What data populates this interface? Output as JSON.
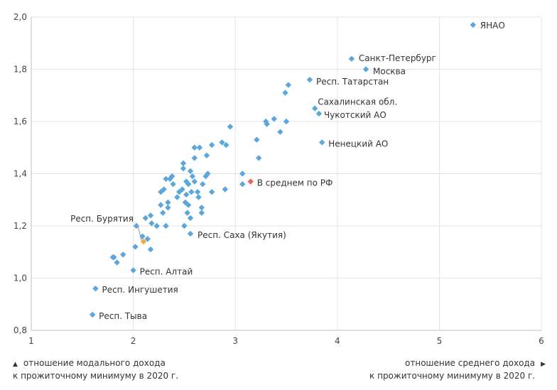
{
  "chart_data": {
    "type": "scatter",
    "title": "",
    "xlabel_lines": [
      "отношение среднего дохода",
      "к прожиточному минимуму в 2020 г."
    ],
    "ylabel_lines": [
      "отношение модального дохода",
      "к прожиточному минимуму в 2020 г."
    ],
    "xlim": [
      1,
      6
    ],
    "ylim": [
      0.8,
      2.0
    ],
    "x_ticks": [
      1,
      2,
      3,
      4,
      5,
      6
    ],
    "x_tick_labels": [
      "1",
      "2",
      "3",
      "4",
      "5",
      "6"
    ],
    "y_ticks": [
      0.8,
      1.0,
      1.2,
      1.4,
      1.6,
      1.8,
      2.0
    ],
    "y_tick_labels": [
      "0,8",
      "1,0",
      "1,2",
      "1,4",
      "1,6",
      "1,8",
      "2,0"
    ],
    "colors": {
      "regular": "#5ba7dc",
      "average": "#e8645c",
      "highlight": "#f2a93b",
      "grid": "#e3e3e3",
      "axis": "#bfbfbf"
    },
    "points": [
      {
        "x": 5.33,
        "y": 1.97,
        "label": "ЯНАО",
        "kind": "regular"
      },
      {
        "x": 4.14,
        "y": 1.84,
        "label": "Санкт-Петербург",
        "kind": "regular"
      },
      {
        "x": 4.28,
        "y": 1.8,
        "label": "Москва",
        "kind": "regular"
      },
      {
        "x": 3.73,
        "y": 1.76,
        "label": "Респ. Татарстан",
        "kind": "regular"
      },
      {
        "x": 3.78,
        "y": 1.65,
        "label": "Сахалинская обл.",
        "kind": "regular"
      },
      {
        "x": 3.82,
        "y": 1.63,
        "label": "Чукотский АО",
        "kind": "regular"
      },
      {
        "x": 3.85,
        "y": 1.52,
        "label": "Ненецкий АО",
        "kind": "regular"
      },
      {
        "x": 3.15,
        "y": 1.37,
        "label": "В среднем по РФ",
        "kind": "average"
      },
      {
        "x": 2.1,
        "y": 1.14,
        "label": "Респ. Бурятия",
        "kind": "highlight"
      },
      {
        "x": 2.56,
        "y": 1.17,
        "label": "Респ. Саха (Якутия)",
        "kind": "regular"
      },
      {
        "x": 2.0,
        "y": 1.03,
        "label": "Респ. Алтай",
        "kind": "regular"
      },
      {
        "x": 1.63,
        "y": 0.96,
        "label": "Респ. Ингушетия",
        "kind": "regular"
      },
      {
        "x": 1.6,
        "y": 0.86,
        "label": "Респ. Тыва",
        "kind": "regular"
      },
      {
        "x": 3.52,
        "y": 1.74,
        "label": "",
        "kind": "regular"
      },
      {
        "x": 3.49,
        "y": 1.71,
        "label": "",
        "kind": "regular"
      },
      {
        "x": 3.3,
        "y": 1.6,
        "label": "",
        "kind": "regular"
      },
      {
        "x": 3.31,
        "y": 1.59,
        "label": "",
        "kind": "regular"
      },
      {
        "x": 3.38,
        "y": 1.61,
        "label": "",
        "kind": "regular"
      },
      {
        "x": 3.5,
        "y": 1.6,
        "label": "",
        "kind": "regular"
      },
      {
        "x": 3.44,
        "y": 1.56,
        "label": "",
        "kind": "regular"
      },
      {
        "x": 2.95,
        "y": 1.58,
        "label": "",
        "kind": "regular"
      },
      {
        "x": 3.21,
        "y": 1.53,
        "label": "",
        "kind": "regular"
      },
      {
        "x": 3.23,
        "y": 1.46,
        "label": "",
        "kind": "regular"
      },
      {
        "x": 3.07,
        "y": 1.4,
        "label": "",
        "kind": "regular"
      },
      {
        "x": 3.07,
        "y": 1.36,
        "label": "",
        "kind": "regular"
      },
      {
        "x": 2.87,
        "y": 1.52,
        "label": "",
        "kind": "regular"
      },
      {
        "x": 2.91,
        "y": 1.51,
        "label": "",
        "kind": "regular"
      },
      {
        "x": 2.77,
        "y": 1.51,
        "label": "",
        "kind": "regular"
      },
      {
        "x": 2.65,
        "y": 1.5,
        "label": "",
        "kind": "regular"
      },
      {
        "x": 2.6,
        "y": 1.5,
        "label": "",
        "kind": "regular"
      },
      {
        "x": 2.72,
        "y": 1.47,
        "label": "",
        "kind": "regular"
      },
      {
        "x": 2.6,
        "y": 1.46,
        "label": "",
        "kind": "regular"
      },
      {
        "x": 2.49,
        "y": 1.44,
        "label": "",
        "kind": "regular"
      },
      {
        "x": 2.49,
        "y": 1.42,
        "label": "",
        "kind": "regular"
      },
      {
        "x": 2.56,
        "y": 1.41,
        "label": "",
        "kind": "regular"
      },
      {
        "x": 2.73,
        "y": 1.4,
        "label": "",
        "kind": "regular"
      },
      {
        "x": 2.71,
        "y": 1.39,
        "label": "",
        "kind": "regular"
      },
      {
        "x": 2.58,
        "y": 1.39,
        "label": "",
        "kind": "regular"
      },
      {
        "x": 2.38,
        "y": 1.39,
        "label": "",
        "kind": "regular"
      },
      {
        "x": 2.32,
        "y": 1.38,
        "label": "",
        "kind": "regular"
      },
      {
        "x": 2.36,
        "y": 1.38,
        "label": "",
        "kind": "regular"
      },
      {
        "x": 2.52,
        "y": 1.37,
        "label": "",
        "kind": "regular"
      },
      {
        "x": 2.6,
        "y": 1.37,
        "label": "",
        "kind": "regular"
      },
      {
        "x": 2.54,
        "y": 1.36,
        "label": "",
        "kind": "regular"
      },
      {
        "x": 2.68,
        "y": 1.36,
        "label": "",
        "kind": "regular"
      },
      {
        "x": 2.39,
        "y": 1.36,
        "label": "",
        "kind": "regular"
      },
      {
        "x": 2.48,
        "y": 1.34,
        "label": "",
        "kind": "regular"
      },
      {
        "x": 2.3,
        "y": 1.34,
        "label": "",
        "kind": "regular"
      },
      {
        "x": 2.45,
        "y": 1.33,
        "label": "",
        "kind": "regular"
      },
      {
        "x": 2.27,
        "y": 1.33,
        "label": "",
        "kind": "regular"
      },
      {
        "x": 2.57,
        "y": 1.33,
        "label": "",
        "kind": "regular"
      },
      {
        "x": 2.63,
        "y": 1.33,
        "label": "",
        "kind": "regular"
      },
      {
        "x": 2.77,
        "y": 1.33,
        "label": "",
        "kind": "regular"
      },
      {
        "x": 2.9,
        "y": 1.34,
        "label": "",
        "kind": "regular"
      },
      {
        "x": 2.52,
        "y": 1.32,
        "label": "",
        "kind": "regular"
      },
      {
        "x": 2.43,
        "y": 1.31,
        "label": "",
        "kind": "regular"
      },
      {
        "x": 2.64,
        "y": 1.31,
        "label": "",
        "kind": "regular"
      },
      {
        "x": 2.34,
        "y": 1.29,
        "label": "",
        "kind": "regular"
      },
      {
        "x": 2.51,
        "y": 1.29,
        "label": "",
        "kind": "regular"
      },
      {
        "x": 2.27,
        "y": 1.28,
        "label": "",
        "kind": "regular"
      },
      {
        "x": 2.54,
        "y": 1.28,
        "label": "",
        "kind": "regular"
      },
      {
        "x": 2.67,
        "y": 1.27,
        "label": "",
        "kind": "regular"
      },
      {
        "x": 2.34,
        "y": 1.27,
        "label": "",
        "kind": "regular"
      },
      {
        "x": 2.29,
        "y": 1.25,
        "label": "",
        "kind": "regular"
      },
      {
        "x": 2.53,
        "y": 1.25,
        "label": "",
        "kind": "regular"
      },
      {
        "x": 2.67,
        "y": 1.25,
        "label": "",
        "kind": "regular"
      },
      {
        "x": 2.17,
        "y": 1.24,
        "label": "",
        "kind": "regular"
      },
      {
        "x": 2.56,
        "y": 1.23,
        "label": "",
        "kind": "regular"
      },
      {
        "x": 2.12,
        "y": 1.23,
        "label": "",
        "kind": "regular"
      },
      {
        "x": 2.18,
        "y": 1.21,
        "label": "",
        "kind": "regular"
      },
      {
        "x": 2.23,
        "y": 1.2,
        "label": "",
        "kind": "regular"
      },
      {
        "x": 2.03,
        "y": 1.2,
        "label": "",
        "kind": "regular"
      },
      {
        "x": 2.32,
        "y": 1.2,
        "label": "",
        "kind": "regular"
      },
      {
        "x": 2.5,
        "y": 1.2,
        "label": "",
        "kind": "regular"
      },
      {
        "x": 2.09,
        "y": 1.16,
        "label": "",
        "kind": "regular"
      },
      {
        "x": 2.14,
        "y": 1.15,
        "label": "",
        "kind": "regular"
      },
      {
        "x": 2.02,
        "y": 1.12,
        "label": "",
        "kind": "regular"
      },
      {
        "x": 2.17,
        "y": 1.11,
        "label": "",
        "kind": "regular"
      },
      {
        "x": 1.9,
        "y": 1.09,
        "label": "",
        "kind": "regular"
      },
      {
        "x": 1.8,
        "y": 1.08,
        "label": "",
        "kind": "regular"
      },
      {
        "x": 1.81,
        "y": 1.08,
        "label": "",
        "kind": "regular"
      },
      {
        "x": 1.84,
        "y": 1.06,
        "label": "",
        "kind": "regular"
      }
    ]
  }
}
